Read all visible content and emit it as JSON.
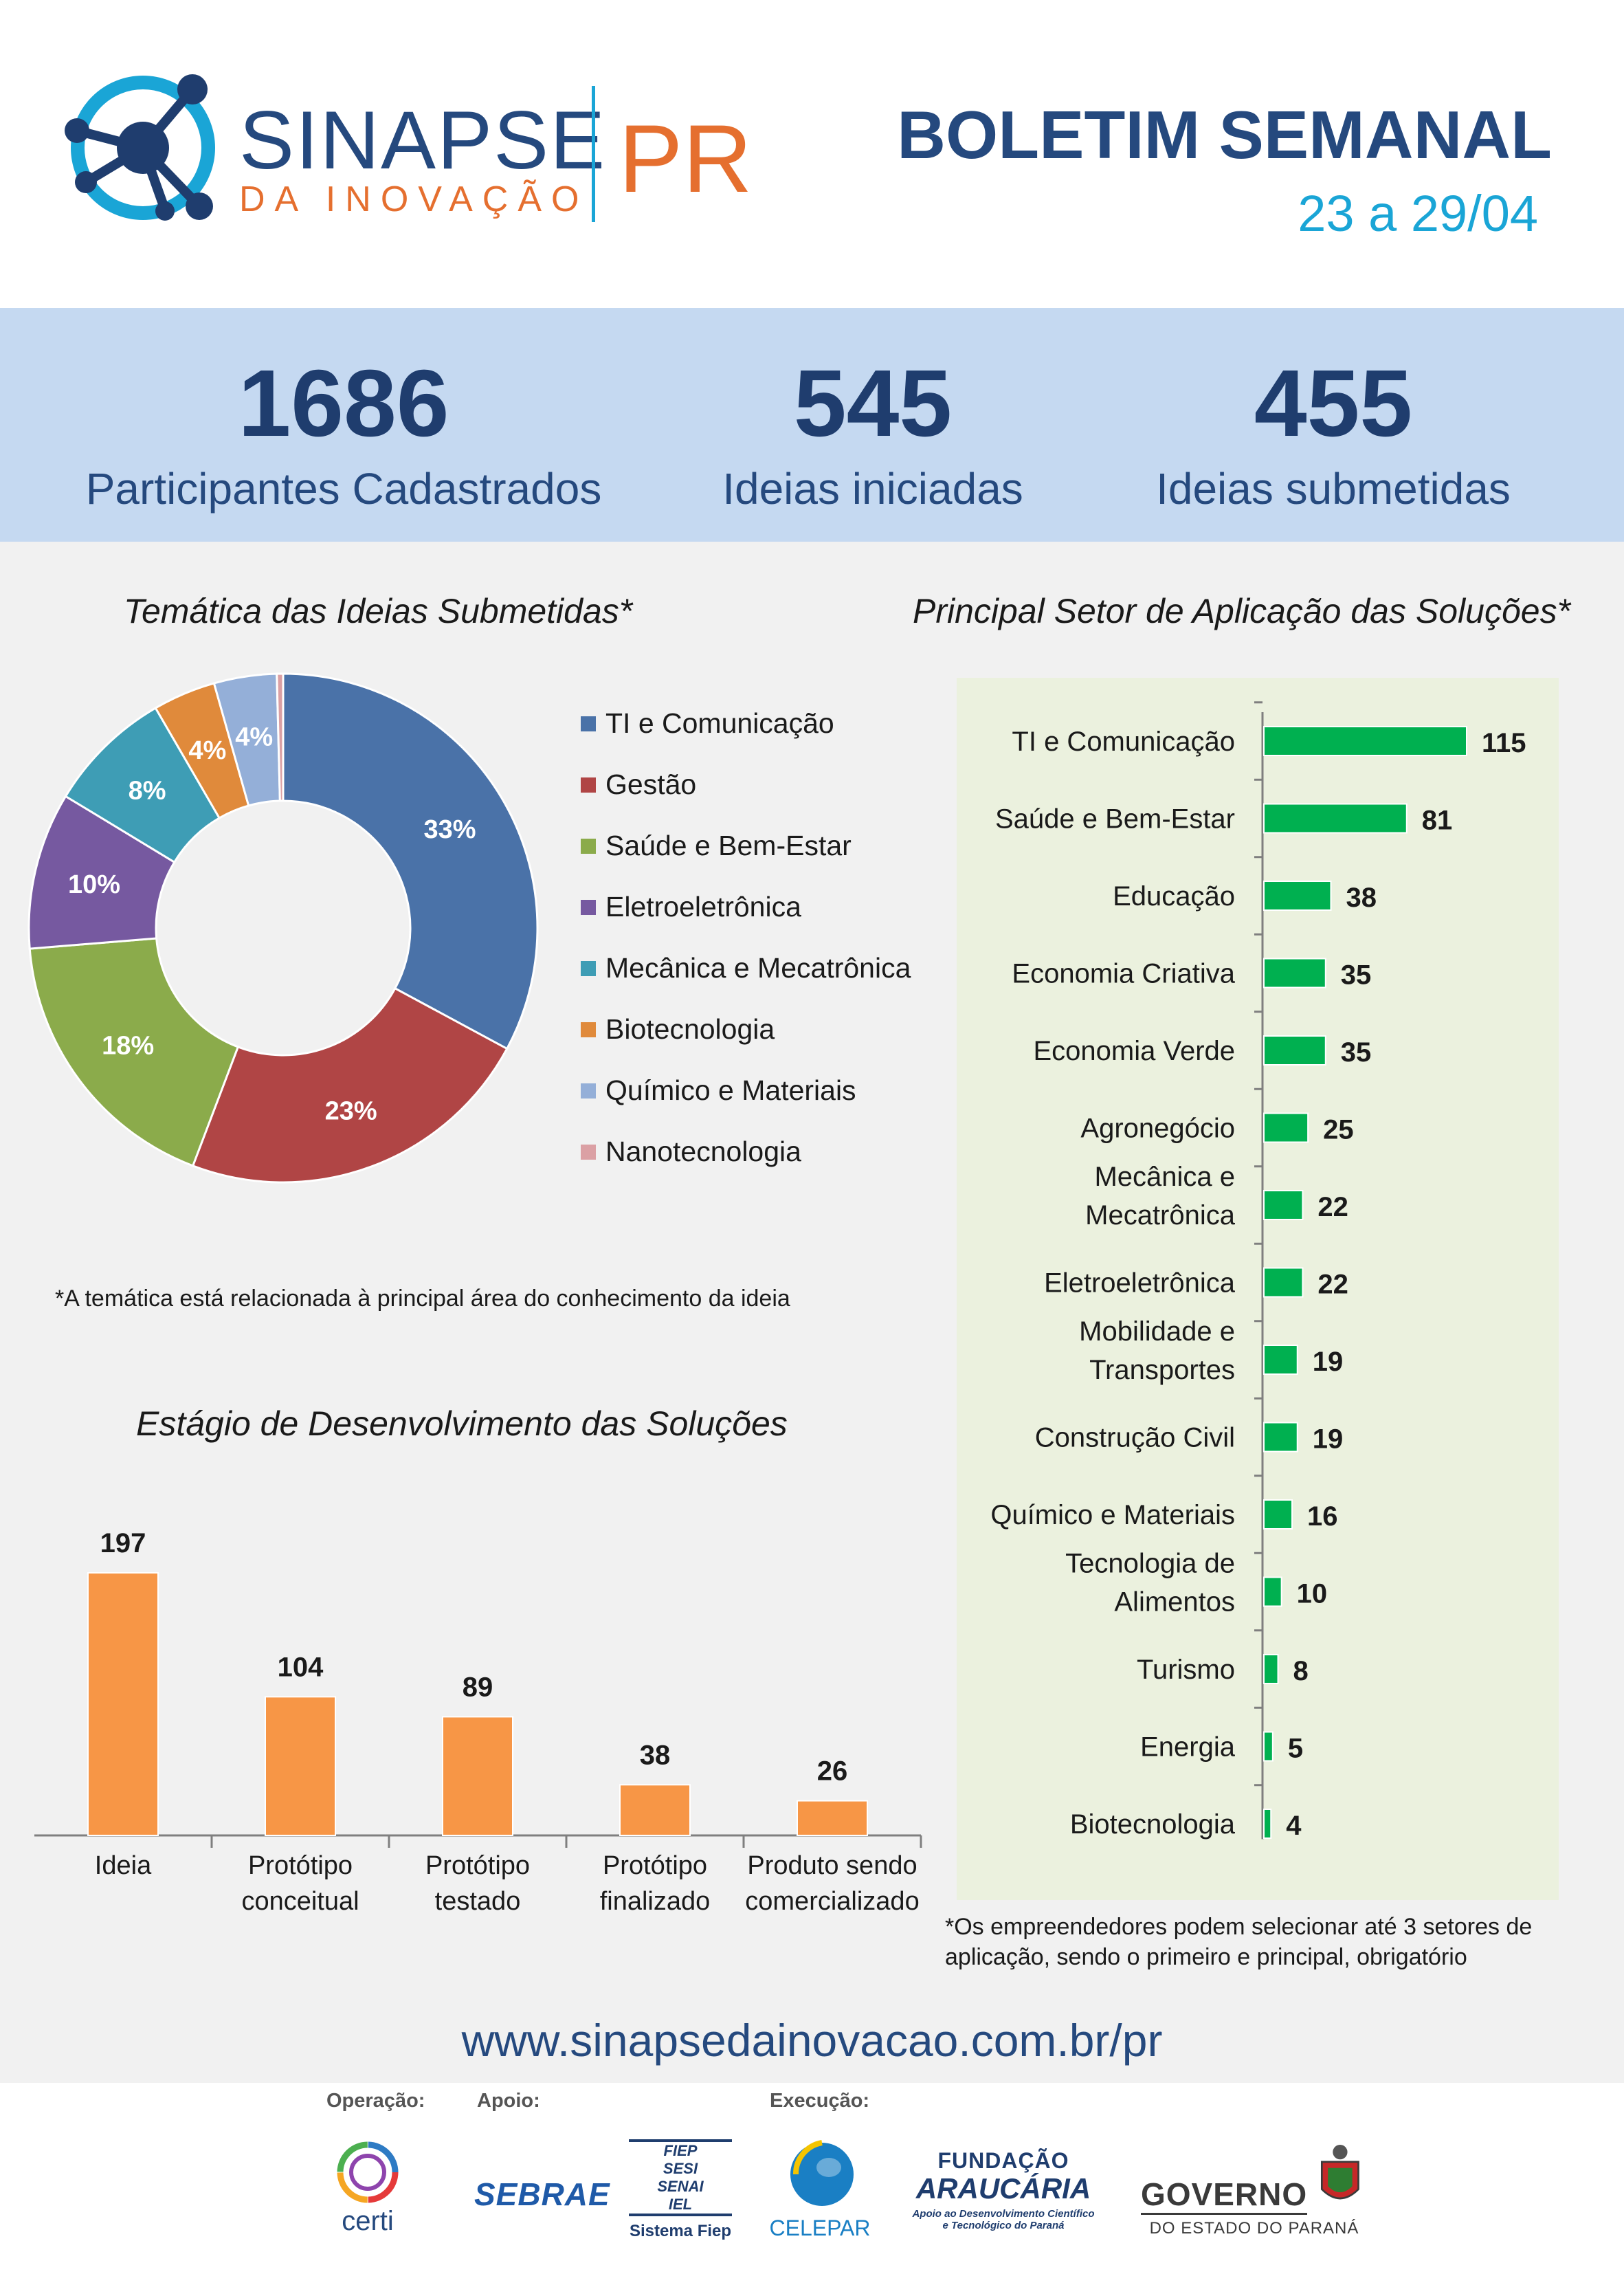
{
  "header": {
    "logo_name": "SINAPSE",
    "logo_sub": "DA INOVAÇÃO",
    "logo_pr": "PR",
    "bulletin_title": "BOLETIM SEMANAL",
    "bulletin_date": "23 a 29/04"
  },
  "stats": [
    {
      "value": "1686",
      "label": "Participantes Cadastrados"
    },
    {
      "value": "545",
      "label": "Ideias iniciadas"
    },
    {
      "value": "455",
      "label": "Ideias submetidas"
    }
  ],
  "colors": {
    "navy": "#25497e",
    "cyan": "#1aa5d6",
    "orange": "#e56f2f",
    "stats_bg": "#c5d9f1",
    "panel_bg": "#ebf1de",
    "bar_green": "#00b050",
    "bar_orange": "#f79646"
  },
  "chart_data": [
    {
      "type": "pie",
      "title": "Temática das Ideias Submetidas*",
      "categories": [
        "TI e Comunicação",
        "Gestão",
        "Saúde e Bem-Estar",
        "Eletroeletrônica",
        "Mecânica e Mecatrônica",
        "Biotecnologia",
        "Químico e Materiais",
        "Nanotecnologia"
      ],
      "values": [
        33,
        23,
        18,
        10,
        8,
        4,
        4,
        0.4
      ],
      "data_labels": [
        "33%",
        "23%",
        "18%",
        "10%",
        "8%",
        "4%",
        "4%",
        ""
      ],
      "colors": [
        "#4a72a8",
        "#b04545",
        "#8bab4b",
        "#7659a0",
        "#3e9db5",
        "#e08a3b",
        "#94afd8",
        "#dba0a4"
      ],
      "legend": "right",
      "donut": true
    },
    {
      "type": "bar",
      "orientation": "horizontal",
      "title": "Principal Setor de Aplicação das Soluções*",
      "categories": [
        "TI e Comunicação",
        "Saúde e Bem-Estar",
        "Educação",
        "Economia Criativa",
        "Economia Verde",
        "Agronegócio",
        "Mecânica e Mecatrônica",
        "Eletroeletrônica",
        "Mobilidade e Transportes",
        "Construção Civil",
        "Químico e Materiais",
        "Tecnologia de Alimentos",
        "Turismo",
        "Energia",
        "Biotecnologia"
      ],
      "category_lines": [
        [
          "TI e Comunicação"
        ],
        [
          "Saúde e Bem-Estar"
        ],
        [
          "Educação"
        ],
        [
          "Economia Criativa"
        ],
        [
          "Economia Verde"
        ],
        [
          "Agronegócio"
        ],
        [
          "Mecânica e",
          "Mecatrônica"
        ],
        [
          "Eletroeletrônica"
        ],
        [
          "Mobilidade e",
          "Transportes"
        ],
        [
          "Construção Civil"
        ],
        [
          "Químico e Materiais"
        ],
        [
          "Tecnologia de",
          "Alimentos"
        ],
        [
          "Turismo"
        ],
        [
          "Energia"
        ],
        [
          "Biotecnologia"
        ]
      ],
      "values": [
        115,
        81,
        38,
        35,
        35,
        25,
        22,
        22,
        19,
        19,
        16,
        10,
        8,
        5,
        4
      ],
      "xlim": [
        0,
        115
      ],
      "grid": false
    },
    {
      "type": "bar",
      "title": "Estágio de Desenvolvimento das Soluções",
      "categories": [
        "Ideia",
        "Protótipo conceitual",
        "Protótipo testado",
        "Protótipo finalizado",
        "Produto sendo comercializado"
      ],
      "category_lines": [
        [
          "Ideia"
        ],
        [
          "Protótipo",
          "conceitual"
        ],
        [
          "Protótipo",
          "testado"
        ],
        [
          "Protótipo",
          "finalizado"
        ],
        [
          "Produto sendo",
          "comercializado"
        ]
      ],
      "values": [
        197,
        104,
        89,
        38,
        26
      ],
      "ylim": [
        0,
        197
      ],
      "grid": false
    }
  ],
  "notes": {
    "thematic": "*A temática está relacionada à principal área do conhecimento da ideia",
    "sector_line1": "*Os empreendedores podem selecionar até 3 setores de",
    "sector_line2": "aplicação, sendo o primeiro e principal, obrigatório"
  },
  "url": "www.sinapsedainovacao.com.br/pr",
  "footer": {
    "operacao_label": "Operação:",
    "apoio_label": "Apoio:",
    "execucao_label": "Execução:",
    "certi": "certi",
    "sebrae": "SEBRAE",
    "fiep_lines": [
      "FIEP",
      "SESI",
      "SENAI",
      "IEL"
    ],
    "sistema_fiep": "Sistema Fiep",
    "celepar": "CELEPAR",
    "fundacao": "FUNDAÇÃO",
    "araucaria": "ARAUCÁRIA",
    "araucaria_tag1": "Apoio ao Desenvolvimento Científico",
    "araucaria_tag2": "e Tecnológico do Paraná",
    "governo": "GOVERNO",
    "governo_sub": "DO ESTADO DO PARANÁ"
  }
}
